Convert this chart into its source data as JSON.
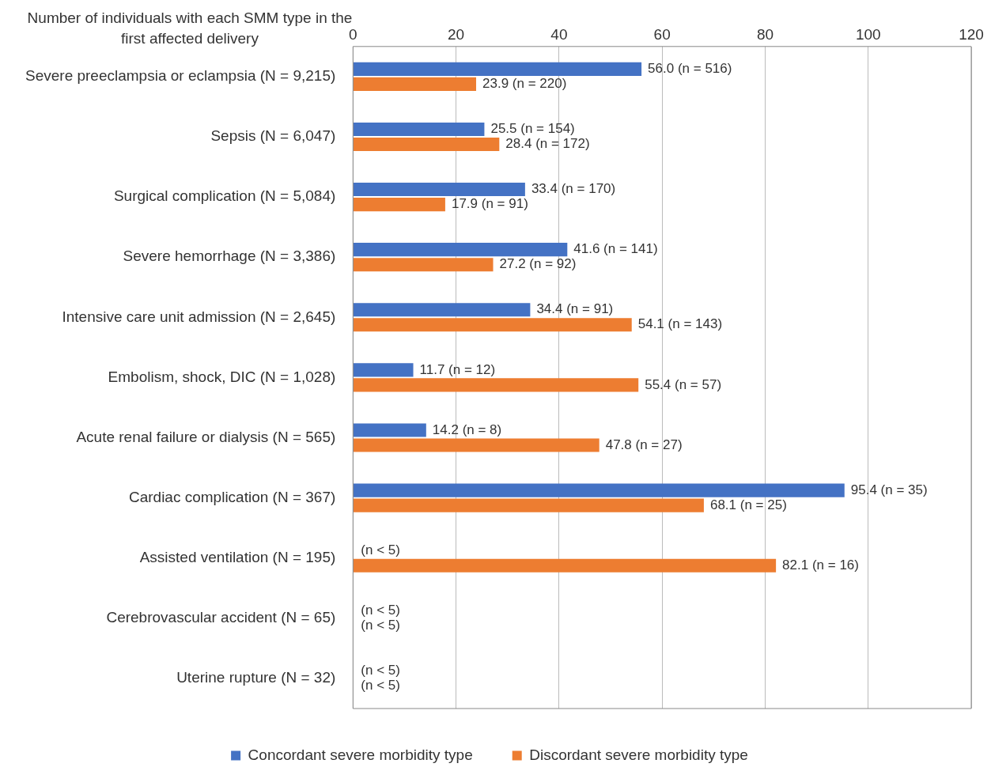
{
  "chart_data": {
    "type": "bar",
    "orientation": "horizontal",
    "ylabel": "Number of individuals with each SMM type in the first affected delivery",
    "categories": [
      "Severe preeclampsia or eclampsia (N = 9,215)",
      "Sepsis (N = 6,047)",
      "Surgical complication (N = 5,084)",
      "Severe hemorrhage (N = 3,386)",
      "Intensive care unit admission (N = 2,645)",
      "Embolism, shock, DIC (N = 1,028)",
      "Acute renal failure or dialysis (N = 565)",
      "Cardiac complication (N = 367)",
      "Assisted ventilation (N = 195)",
      "Cerebrovascular accident (N = 65)",
      "Uterine rupture (N = 32)"
    ],
    "series": [
      {
        "name": "Concordant severe morbidity type",
        "color": "#4472c4",
        "values": [
          56.0,
          25.5,
          33.4,
          41.6,
          34.4,
          11.7,
          14.2,
          95.4,
          null,
          null,
          null
        ],
        "value_labels": [
          "56.0 (n = 516)",
          "25.5 (n = 154)",
          "33.4 (n = 170)",
          "41.6 (n = 141)",
          "34.4 (n = 91)",
          "11.7 (n = 12)",
          "14.2 (n = 8)",
          "95.4 (n = 35)",
          "(n < 5)",
          "(n < 5)",
          "(n < 5)"
        ]
      },
      {
        "name": "Discordant severe morbidity type",
        "color": "#ed7d31",
        "values": [
          23.9,
          28.4,
          17.9,
          27.2,
          54.1,
          55.4,
          47.8,
          68.1,
          82.1,
          null,
          null
        ],
        "value_labels": [
          "23.9 (n = 220)",
          "28.4 (n = 172)",
          "17.9 (n = 91)",
          "27.2 (n = 92)",
          "54.1 (n = 143)",
          "55.4 (n = 57)",
          "47.8 (n = 27)",
          "68.1 (n = 25)",
          "82.1 (n = 16)",
          "(n < 5)",
          "(n < 5)"
        ]
      }
    ],
    "xlim": [
      0,
      120
    ],
    "xticks": [
      0,
      20,
      40,
      60,
      80,
      100,
      120
    ],
    "grid": "x",
    "legend": "bottom"
  }
}
